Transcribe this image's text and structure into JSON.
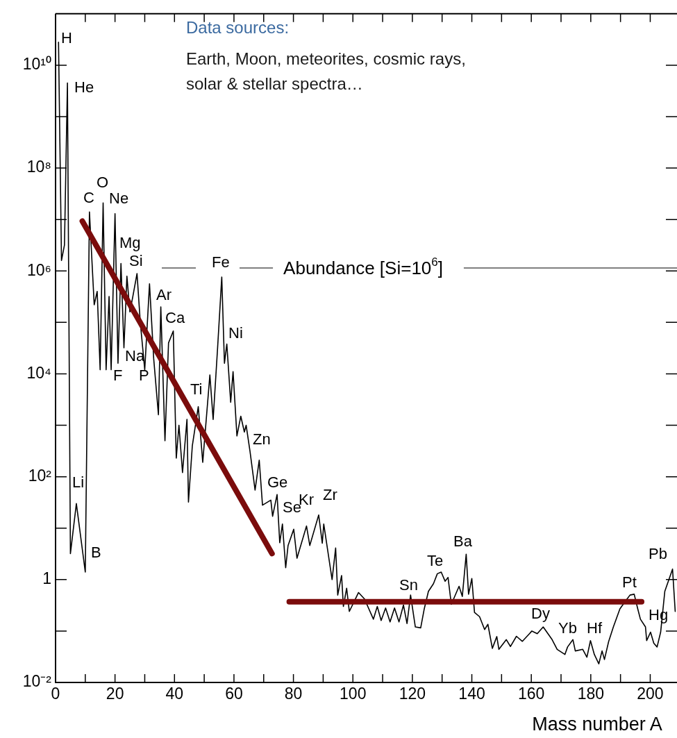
{
  "chart_data": {
    "type": "line",
    "title": "Data sources:",
    "subtitle": "Earth, Moon, meteorites, cosmic rays, solar & stellar spectra…",
    "xlabel": "Mass number A",
    "ylabel": "Abundance [Si=10$^{6}$]",
    "log": "y",
    "grid": false,
    "marker": "none",
    "xlim": [
      0,
      209
    ],
    "ylim": [
      0.01,
      100000000000.0
    ],
    "xticks": [
      0,
      {
        "value": 10,
        "label": null
      },
      20,
      {
        "value": 30,
        "label": null
      },
      40,
      {
        "value": 50,
        "label": null
      },
      60,
      {
        "value": 70,
        "label": null
      },
      80,
      {
        "value": 90,
        "label": null
      },
      100,
      {
        "value": 110,
        "label": null
      },
      120,
      {
        "value": 130,
        "label": null
      },
      140,
      {
        "value": 150,
        "label": null
      },
      160,
      {
        "value": 170,
        "label": null
      },
      180,
      {
        "value": 190,
        "label": null
      },
      200
    ],
    "yticks": [
      {
        "value": 0.01,
        "label": "10⁻²"
      },
      {
        "value": 0.1,
        "label": null
      },
      1,
      {
        "value": 10,
        "label": null
      },
      {
        "value": 100,
        "label": "10²"
      },
      {
        "value": 1000,
        "label": null
      },
      {
        "value": 10000,
        "label": "10⁴"
      },
      {
        "value": 100000,
        "label": null
      },
      {
        "value": 1000000,
        "label": "10⁶"
      },
      {
        "value": 10000000,
        "label": null
      },
      {
        "value": 100000000,
        "label": "10⁸"
      },
      {
        "value": 1000000000,
        "label": null
      },
      {
        "value": 10000000000,
        "label": "10¹⁰"
      }
    ],
    "x": [
      1,
      2,
      3,
      4,
      5,
      7,
      10,
      11.4,
      13,
      14,
      15,
      16,
      17,
      18,
      18.7,
      20,
      21,
      22,
      23,
      24,
      25,
      26,
      27.4,
      28.5,
      30,
      31.6,
      33,
      34.6,
      35.4,
      36.8,
      38,
      39.6,
      40.6,
      41.5,
      42.7,
      44.2,
      44.7,
      46,
      48,
      49.5,
      51.9,
      53,
      54.5,
      55.9,
      56.8,
      57.6,
      58.9,
      59.7,
      61,
      62.3,
      63.5,
      64.1,
      65.4,
      67.1,
      68.5,
      69.6,
      72.4,
      73,
      74.5,
      75.4,
      76.3,
      77.4,
      78.2,
      80.1,
      81.2,
      84.4,
      85.5,
      88.5,
      89.7,
      90.2,
      93,
      94.2,
      94.9,
      96.2,
      96.8,
      97.9,
      98.8,
      101.9,
      103.9,
      106.9,
      108.2,
      109.5,
      111,
      112.5,
      114,
      115.5,
      117,
      118.2,
      119.4,
      121,
      122.8,
      124,
      125.4,
      127.1,
      128.4,
      129.7,
      131,
      132,
      133.1,
      135.7,
      136.8,
      138.1,
      138.9,
      140,
      140.9,
      142.6,
      144.3,
      145.4,
      146.9,
      148.4,
      149.1,
      151.6,
      153,
      155,
      157,
      160.2,
      162,
      164,
      167,
      168.7,
      171.3,
      172.2,
      174,
      174.8,
      177.3,
      178.7,
      179.9,
      181.2,
      182.7,
      183.8,
      184.6,
      186,
      187.6,
      189.8,
      191.5,
      193.2,
      194.6,
      195.8,
      196.7,
      198.4,
      198.8,
      200.1,
      201.2,
      202.3,
      203.5,
      204.9,
      207.5,
      208.4
    ],
    "series": [
      {
        "color": "#000000",
        "values": [
          28000000000.0,
          1600000.0,
          3200000.0,
          4500000000.0,
          3.2,
          30,
          1.4,
          14000000.0,
          220000.0,
          400000.0,
          12000.0,
          21000000.0,
          12000.0,
          320000.0,
          12000.0,
          13000000.0,
          16000.0,
          1400000.0,
          32000.0,
          790000.0,
          160000.0,
          320000.0,
          890000.0,
          100000.0,
          12000.0,
          560000.0,
          20000.0,
          1600,
          200000.0,
          500,
          40000.0,
          68000.0,
          230,
          1000,
          120,
          1300,
          32,
          400,
          2300,
          190,
          9500,
          1300,
          32000.0,
          760000.0,
          16000.0,
          38000.0,
          2800,
          11000.0,
          620,
          1500,
          740,
          1000,
          310,
          55,
          210,
          28,
          35,
          17,
          45,
          5.2,
          12,
          1.7,
          4.6,
          9.5,
          2.6,
          11,
          4.6,
          18,
          5.1,
          12,
          1.0,
          4.1,
          0.5,
          1.2,
          0.3,
          0.68,
          0.24,
          0.56,
          0.42,
          0.17,
          0.3,
          0.16,
          0.28,
          0.15,
          0.28,
          0.15,
          0.32,
          0.14,
          0.5,
          0.12,
          0.115,
          0.27,
          0.59,
          0.83,
          1.3,
          1.4,
          0.93,
          1.1,
          0.33,
          0.74,
          0.47,
          3.1,
          0.52,
          1.05,
          0.23,
          0.19,
          0.107,
          0.135,
          0.046,
          0.078,
          0.044,
          0.068,
          0.05,
          0.079,
          0.063,
          0.1,
          0.089,
          0.12,
          0.068,
          0.044,
          0.035,
          0.049,
          0.068,
          0.041,
          0.044,
          0.031,
          0.065,
          0.035,
          0.023,
          0.041,
          0.028,
          0.062,
          0.12,
          0.27,
          0.37,
          0.5,
          0.52,
          0.27,
          0.17,
          0.12,
          0.065,
          0.095,
          0.058,
          0.049,
          0.095,
          0.59,
          1.6,
          0.24
        ]
      },
      {
        "type": "line",
        "color": "#7b0c0c",
        "x": [
          9,
          72.8
        ],
        "values": [
          9300000.0,
          3.2
        ]
      },
      {
        "type": "line",
        "color": "#7b0c0c",
        "x": [
          78.6,
          197.1
        ],
        "values": [
          0.37,
          0.37
        ]
      }
    ],
    "annotations": [
      "H",
      "He",
      "C",
      "O",
      "Ne",
      "Mg",
      "Si",
      "Fe",
      "Ar",
      "Ca",
      "Ni",
      "Na",
      "F",
      "P",
      "Ti",
      "Zn",
      "Ge",
      "Se",
      "Kr",
      "Zr",
      "Li",
      "B",
      "Sn",
      "Te",
      "Ba",
      "Dy",
      "Yb",
      "Hf",
      "Pt",
      "Pb",
      "Hg"
    ]
  }
}
